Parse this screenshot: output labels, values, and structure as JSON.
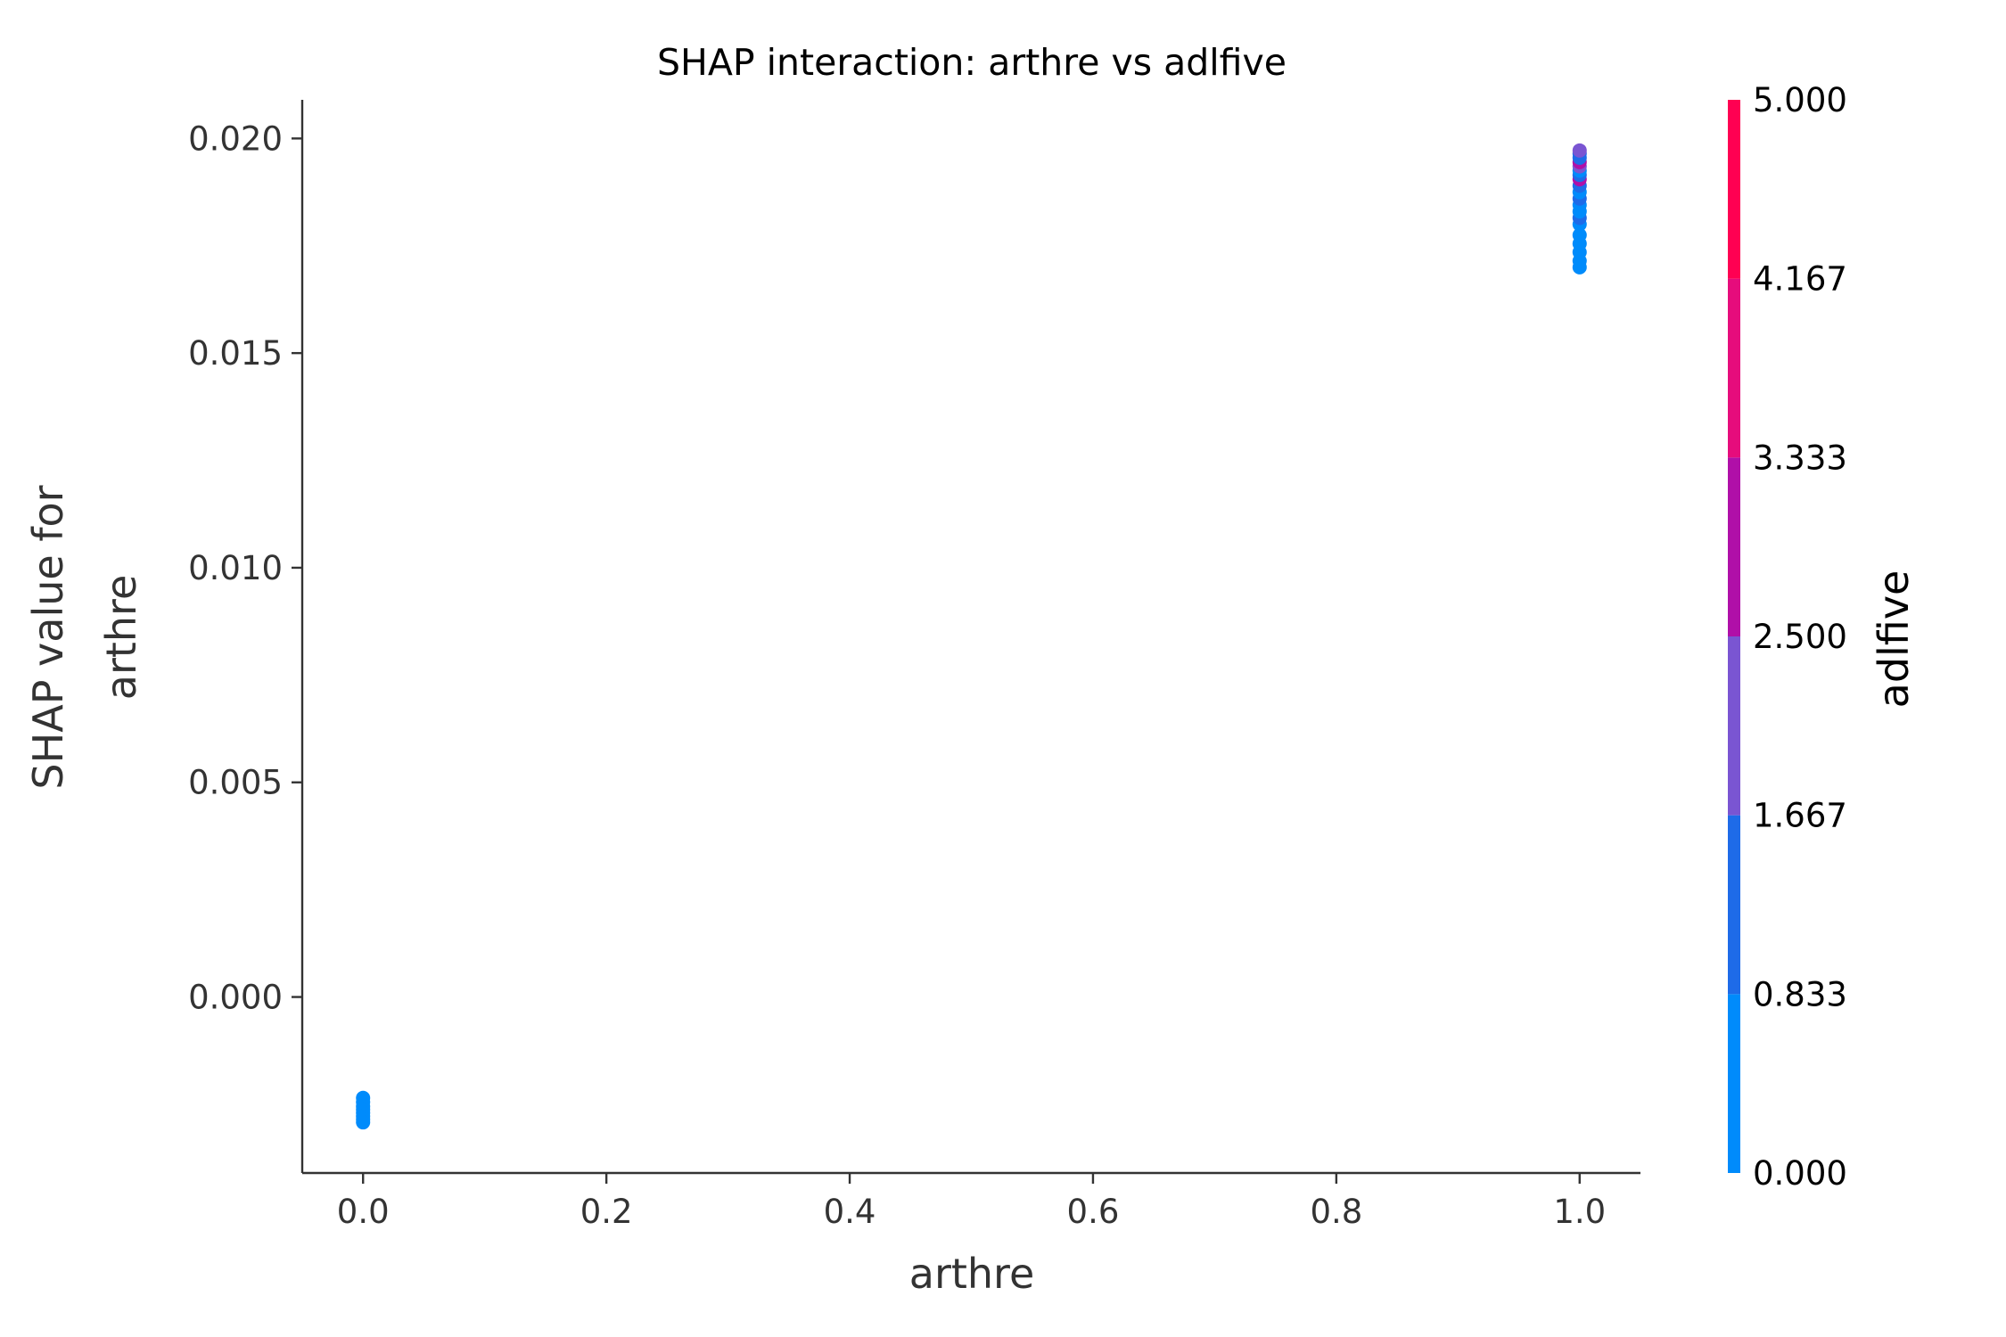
{
  "chart_data": {
    "type": "scatter",
    "title": "SHAP interaction: arthre vs adlfive",
    "xlabel": "arthre",
    "ylabel_lines": [
      "SHAP value for",
      "arthre"
    ],
    "xlim": [
      -0.05,
      1.05
    ],
    "ylim": [
      -0.0041,
      0.0209
    ],
    "xticks": [
      0.0,
      0.2,
      0.4,
      0.6,
      0.8,
      1.0
    ],
    "xtick_labels": [
      "0.0",
      "0.2",
      "0.4",
      "0.6",
      "0.8",
      "1.0"
    ],
    "yticks": [
      0.0,
      0.005,
      0.01,
      0.015,
      0.02
    ],
    "ytick_labels": [
      "0.000",
      "0.005",
      "0.010",
      "0.015",
      "0.020"
    ],
    "grid": false,
    "colorbar": {
      "label": "adlfive",
      "range": [
        0,
        5
      ],
      "ticks": [
        0,
        0.833,
        1.667,
        2.5,
        3.333,
        4.167,
        5.0
      ],
      "tick_labels": [
        "0.000",
        "0.833",
        "1.667",
        "2.500",
        "3.333",
        "4.167",
        "5.000"
      ],
      "colors": [
        "#008bfb",
        "#1e6be8",
        "#7a55d2",
        "#b00fa8",
        "#e60c7c",
        "#ff0052"
      ]
    },
    "points": [
      {
        "x": 0.0,
        "y": -0.00235,
        "c": 0
      },
      {
        "x": 0.0,
        "y": -0.00245,
        "c": 0
      },
      {
        "x": 0.0,
        "y": -0.00255,
        "c": 0
      },
      {
        "x": 0.0,
        "y": -0.00262,
        "c": 0
      },
      {
        "x": 0.0,
        "y": -0.0027,
        "c": 0
      },
      {
        "x": 0.0,
        "y": -0.00278,
        "c": 0
      },
      {
        "x": 0.0,
        "y": -0.00285,
        "c": 0
      },
      {
        "x": 0.0,
        "y": -0.00292,
        "c": 0
      },
      {
        "x": 1.0,
        "y": 0.017,
        "c": 0
      },
      {
        "x": 1.0,
        "y": 0.01715,
        "c": 0
      },
      {
        "x": 1.0,
        "y": 0.01735,
        "c": 0
      },
      {
        "x": 1.0,
        "y": 0.01755,
        "c": 0
      },
      {
        "x": 1.0,
        "y": 0.01775,
        "c": 0
      },
      {
        "x": 1.0,
        "y": 0.018,
        "c": 0
      },
      {
        "x": 1.0,
        "y": 0.01815,
        "c": 1
      },
      {
        "x": 1.0,
        "y": 0.0183,
        "c": 0
      },
      {
        "x": 1.0,
        "y": 0.01845,
        "c": 0
      },
      {
        "x": 1.0,
        "y": 0.0186,
        "c": 1
      },
      {
        "x": 1.0,
        "y": 0.01875,
        "c": 0
      },
      {
        "x": 1.0,
        "y": 0.0189,
        "c": 1
      },
      {
        "x": 1.0,
        "y": 0.01905,
        "c": 3
      },
      {
        "x": 1.0,
        "y": 0.01915,
        "c": 1
      },
      {
        "x": 1.0,
        "y": 0.01925,
        "c": 0
      },
      {
        "x": 1.0,
        "y": 0.01935,
        "c": 2
      },
      {
        "x": 1.0,
        "y": 0.01945,
        "c": 3
      },
      {
        "x": 1.0,
        "y": 0.01955,
        "c": 1
      },
      {
        "x": 1.0,
        "y": 0.01965,
        "c": 1
      },
      {
        "x": 1.0,
        "y": 0.01972,
        "c": 2
      }
    ]
  }
}
